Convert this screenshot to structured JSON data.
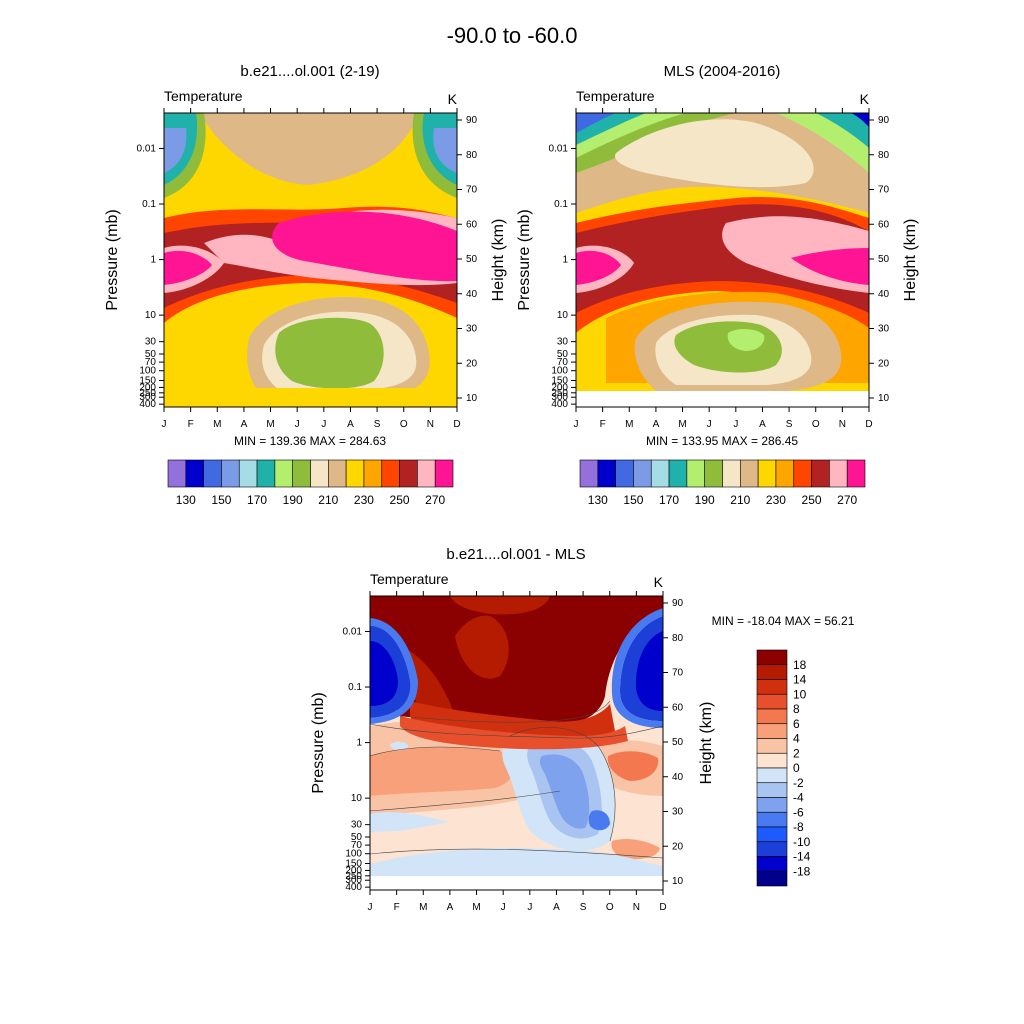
{
  "figure_title": "-90.0 to -60.0",
  "colors": {
    "abs_palette": [
      "#9370db",
      "#0000cd",
      "#4169e1",
      "#7b9be6",
      "#a6dce6",
      "#20b2aa",
      "#b4ee6e",
      "#8fbc3b",
      "#f5e6c8",
      "#deb887",
      "#ffd700",
      "#ffa500",
      "#ff4500",
      "#b22222",
      "#ffb6c1",
      "#ff1493"
    ],
    "diff_palette": [
      "#00008b",
      "#0000cd",
      "#1c3fd8",
      "#1e5bff",
      "#4a7aef",
      "#7fa2ee",
      "#aac4f2",
      "#d2e4f7",
      "#fde4d2",
      "#f9c3a5",
      "#f7a07a",
      "#f3784f",
      "#e8502d",
      "#d1300f",
      "#b51b00",
      "#8b0000"
    ]
  },
  "chart_data": [
    {
      "type": "heatmap",
      "title": "b.e21....ol.001 (2-19)",
      "left_label": "Temperature",
      "units": "K",
      "ylabel": "Pressure (mb)",
      "ylabel_right": "Height (km)",
      "x_ticks": [
        "J",
        "F",
        "M",
        "A",
        "M",
        "J",
        "J",
        "A",
        "S",
        "O",
        "N",
        "D"
      ],
      "y_ticks": [
        "0.01",
        "0.1",
        "1",
        "10",
        "30",
        "50",
        "70",
        "100",
        "150",
        "200",
        "250",
        "300",
        "400"
      ],
      "right_ticks": [
        "90",
        "80",
        "70",
        "60",
        "50",
        "40",
        "30",
        "20",
        "10"
      ],
      "minmax": "MIN = 139.36  MAX = 284.63",
      "min": 139.36,
      "max": 284.63,
      "colorbar_labels": [
        "130",
        "150",
        "170",
        "190",
        "210",
        "230",
        "250",
        "270"
      ],
      "levels": [
        130,
        140,
        150,
        160,
        170,
        180,
        190,
        200,
        210,
        220,
        230,
        240,
        250,
        260,
        270
      ]
    },
    {
      "type": "heatmap",
      "title": "MLS (2004-2016)",
      "left_label": "Temperature",
      "units": "K",
      "ylabel": "Pressure (mb)",
      "ylabel_right": "Height (km)",
      "x_ticks": [
        "J",
        "F",
        "M",
        "A",
        "M",
        "J",
        "J",
        "A",
        "S",
        "O",
        "N",
        "D"
      ],
      "y_ticks": [
        "0.01",
        "0.1",
        "1",
        "10",
        "30",
        "50",
        "70",
        "100",
        "150",
        "200",
        "250",
        "300",
        "400"
      ],
      "right_ticks": [
        "90",
        "80",
        "70",
        "60",
        "50",
        "40",
        "30",
        "20",
        "10"
      ],
      "minmax": "MIN = 133.95  MAX = 286.45",
      "min": 133.95,
      "max": 286.45,
      "colorbar_labels": [
        "130",
        "150",
        "170",
        "190",
        "210",
        "230",
        "250",
        "270"
      ],
      "levels": [
        130,
        140,
        150,
        160,
        170,
        180,
        190,
        200,
        210,
        220,
        230,
        240,
        250,
        260,
        270
      ]
    },
    {
      "type": "heatmap",
      "title": "b.e21....ol.001 - MLS",
      "left_label": "Temperature",
      "units": "K",
      "ylabel": "Pressure (mb)",
      "ylabel_right": "Height (km)",
      "x_ticks": [
        "J",
        "F",
        "M",
        "A",
        "M",
        "J",
        "J",
        "A",
        "S",
        "O",
        "N",
        "D"
      ],
      "y_ticks": [
        "0.01",
        "0.1",
        "1",
        "10",
        "30",
        "50",
        "70",
        "100",
        "150",
        "200",
        "250",
        "300",
        "400"
      ],
      "right_ticks": [
        "90",
        "80",
        "70",
        "60",
        "50",
        "40",
        "30",
        "20",
        "10"
      ],
      "minmax": "MIN = -18.04  MAX =  56.21",
      "min": -18.04,
      "max": 56.21,
      "colorbar_labels": [
        "18",
        "14",
        "10",
        "8",
        "6",
        "4",
        "2",
        "0",
        "-2",
        "-4",
        "-6",
        "-8",
        "-10",
        "-14",
        "-18"
      ],
      "levels": [
        -18,
        -14,
        -10,
        -8,
        -6,
        -4,
        -2,
        0,
        2,
        4,
        6,
        8,
        10,
        14,
        18
      ]
    }
  ]
}
